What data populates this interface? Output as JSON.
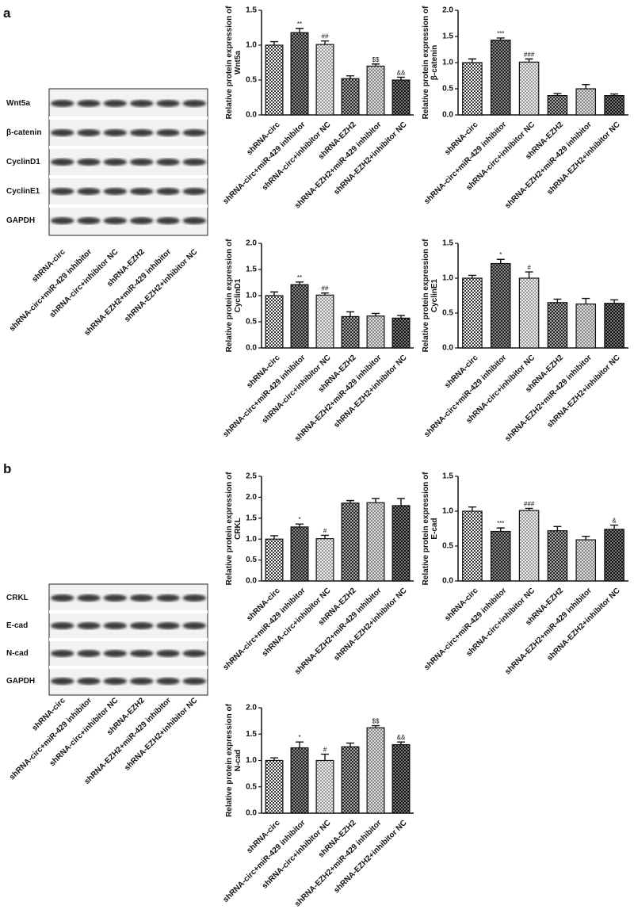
{
  "panels": [
    {
      "label": "a"
    },
    {
      "label": "b"
    }
  ],
  "blots": [
    {
      "rows": [
        "Wnt5a",
        "β-catenin",
        "CyclinD1",
        "CyclinE1",
        "GAPDH"
      ],
      "lanes": [
        "shRNA-circ",
        "shRNA-circ+miR-429 inhibitor",
        "shRNA-circ+inhibitor NC",
        "shRNA-EZH2",
        "shRNA-EZH2+miR-429 inhibitor",
        "shRNA-EZH2+inhibitor NC"
      ]
    },
    {
      "rows": [
        "CRKL",
        "E-cad",
        "N-cad",
        "GAPDH"
      ],
      "lanes": [
        "shRNA-circ",
        "shRNA-circ+miR-429 inhibitor",
        "shRNA-circ+inhibitor NC",
        "shRNA-EZH2",
        "shRNA-EZH2+miR-429 inhibitor",
        "shRNA-EZH2+inhibitor NC"
      ]
    }
  ],
  "chart_data": [
    {
      "type": "bar",
      "ylabel": [
        "Relative protein expression of",
        "Wnt5a"
      ],
      "categories": [
        "shRNA-circ",
        "shRNA-circ+miR-429 inhibitor",
        "shRNA-circ+inhibitor NC",
        "shRNA-EZH2",
        "shRNA-EZH2+miR-429 inhibitor",
        "shRNA-EZH2+inhibitor NC"
      ],
      "values": [
        1.0,
        1.18,
        1.01,
        0.52,
        0.7,
        0.5
      ],
      "errors": [
        0.05,
        0.06,
        0.05,
        0.04,
        0.03,
        0.04
      ],
      "annotations": [
        null,
        "**",
        "##",
        null,
        "$$",
        "&&"
      ],
      "ylim": [
        0,
        1.5
      ],
      "yticks": [
        {
          "value": 0,
          "label": "0.0"
        },
        {
          "value": 0.5,
          "label": "0.5"
        },
        {
          "value": 1,
          "label": "1.0"
        },
        {
          "value": 1.5,
          "label": "1.5"
        }
      ]
    },
    {
      "type": "bar",
      "ylabel": [
        "Relative protein expression of",
        "β-catenin"
      ],
      "categories": [
        "shRNA-circ",
        "shRNA-circ+miR-429 inhibitor",
        "shRNA-circ+inhibitor NC",
        "shRNA-EZH2",
        "shRNA-EZH2+miR-429 inhibitor",
        "shRNA-EZH2+inhibitor NC"
      ],
      "values": [
        1.0,
        1.43,
        1.01,
        0.37,
        0.5,
        0.37
      ],
      "errors": [
        0.07,
        0.04,
        0.06,
        0.04,
        0.08,
        0.03
      ],
      "annotations": [
        null,
        "***",
        "###",
        null,
        null,
        null
      ],
      "ylim": [
        0,
        2
      ],
      "yticks": [
        {
          "value": 0,
          "label": "0.0"
        },
        {
          "value": 0.5,
          "label": "0.5"
        },
        {
          "value": 1,
          "label": "1.0"
        },
        {
          "value": 1.5,
          "label": "1.5"
        },
        {
          "value": 2,
          "label": "2.0"
        }
      ]
    },
    {
      "type": "bar",
      "ylabel": [
        "Relative protein expression of",
        "CyclinD1"
      ],
      "categories": [
        "shRNA-circ",
        "shRNA-circ+miR-429 inhibitor",
        "shRNA-circ+inhibitor NC",
        "shRNA-EZH2",
        "shRNA-EZH2+miR-429 inhibitor",
        "shRNA-EZH2+inhibitor NC"
      ],
      "values": [
        1.0,
        1.21,
        1.01,
        0.6,
        0.61,
        0.57
      ],
      "errors": [
        0.07,
        0.05,
        0.04,
        0.09,
        0.05,
        0.05
      ],
      "annotations": [
        null,
        "**",
        "##",
        null,
        null,
        null
      ],
      "ylim": [
        0,
        2
      ],
      "yticks": [
        {
          "value": 0,
          "label": "0.0"
        },
        {
          "value": 0.5,
          "label": "0.5"
        },
        {
          "value": 1,
          "label": "1.0"
        },
        {
          "value": 1.5,
          "label": "1.5"
        },
        {
          "value": 2,
          "label": "2.0"
        }
      ]
    },
    {
      "type": "bar",
      "ylabel": [
        "Relative protein expression of",
        "CyclinE1"
      ],
      "categories": [
        "shRNA-circ",
        "shRNA-circ+miR-429 inhibitor",
        "shRNA-circ+inhibitor NC",
        "shRNA-EZH2",
        "shRNA-EZH2+miR-429 inhibitor",
        "shRNA-EZH2+inhibitor NC"
      ],
      "values": [
        1.0,
        1.21,
        1.0,
        0.65,
        0.63,
        0.64
      ],
      "errors": [
        0.04,
        0.06,
        0.09,
        0.05,
        0.08,
        0.05
      ],
      "annotations": [
        null,
        "*",
        "#",
        null,
        null,
        null
      ],
      "ylim": [
        0,
        1.5
      ],
      "yticks": [
        {
          "value": 0,
          "label": "0.0"
        },
        {
          "value": 0.5,
          "label": "0.5"
        },
        {
          "value": 1,
          "label": "1.0"
        },
        {
          "value": 1.5,
          "label": "1.5"
        }
      ]
    },
    {
      "type": "bar",
      "ylabel": [
        "Relative protein expression of",
        "CRKL"
      ],
      "categories": [
        "shRNA-circ",
        "shRNA-circ+miR-429 inhibitor",
        "shRNA-circ+inhibitor NC",
        "shRNA-EZH2",
        "shRNA-EZH2+miR-429 inhibitor",
        "shRNA-EZH2+inhibitor NC"
      ],
      "values": [
        1.0,
        1.29,
        1.01,
        1.86,
        1.87,
        1.8
      ],
      "errors": [
        0.08,
        0.07,
        0.08,
        0.06,
        0.1,
        0.17
      ],
      "annotations": [
        null,
        "*",
        "#",
        null,
        null,
        null
      ],
      "ylim": [
        0,
        2.5
      ],
      "yticks": [
        {
          "value": 0,
          "label": "0.0"
        },
        {
          "value": 0.5,
          "label": "0.5"
        },
        {
          "value": 1,
          "label": "1.0"
        },
        {
          "value": 1.5,
          "label": "1.5"
        },
        {
          "value": 2,
          "label": "2.0"
        },
        {
          "value": 2.5,
          "label": "2.5"
        }
      ]
    },
    {
      "type": "bar",
      "ylabel": [
        "Relative protein expression of",
        "E-cad"
      ],
      "categories": [
        "shRNA-circ",
        "shRNA-circ+miR-429 inhibitor",
        "shRNA-circ+inhibitor NC",
        "shRNA-EZH2",
        "shRNA-EZH2+miR-429 inhibitor",
        "shRNA-EZH2+inhibitor NC"
      ],
      "values": [
        1.0,
        0.71,
        1.01,
        0.72,
        0.59,
        0.74
      ],
      "errors": [
        0.06,
        0.05,
        0.03,
        0.06,
        0.05,
        0.06
      ],
      "annotations": [
        null,
        "***",
        "###",
        null,
        null,
        "&"
      ],
      "ylim": [
        0,
        1.5
      ],
      "yticks": [
        {
          "value": 0,
          "label": "0.0"
        },
        {
          "value": 0.5,
          "label": "0.5"
        },
        {
          "value": 1,
          "label": "1.0"
        },
        {
          "value": 1.5,
          "label": "1.5"
        }
      ]
    },
    {
      "type": "bar",
      "ylabel": [
        "Relative protein expression of",
        "N-cad"
      ],
      "categories": [
        "shRNA-circ",
        "shRNA-circ+miR-429 inhibitor",
        "shRNA-circ+inhibitor NC",
        "shRNA-EZH2",
        "shRNA-EZH2+miR-429 inhibitor",
        "shRNA-EZH2+inhibitor NC"
      ],
      "values": [
        1.0,
        1.24,
        1.0,
        1.26,
        1.62,
        1.3
      ],
      "errors": [
        0.05,
        0.11,
        0.12,
        0.07,
        0.04,
        0.05
      ],
      "annotations": [
        null,
        "*",
        "#",
        null,
        "$$",
        "&&"
      ],
      "ylim": [
        0,
        2
      ],
      "yticks": [
        {
          "value": 0,
          "label": "0.0"
        },
        {
          "value": 0.5,
          "label": "0.5"
        },
        {
          "value": 1,
          "label": "1.0"
        },
        {
          "value": 1.5,
          "label": "1.5"
        },
        {
          "value": 2,
          "label": "2.0"
        }
      ]
    }
  ]
}
